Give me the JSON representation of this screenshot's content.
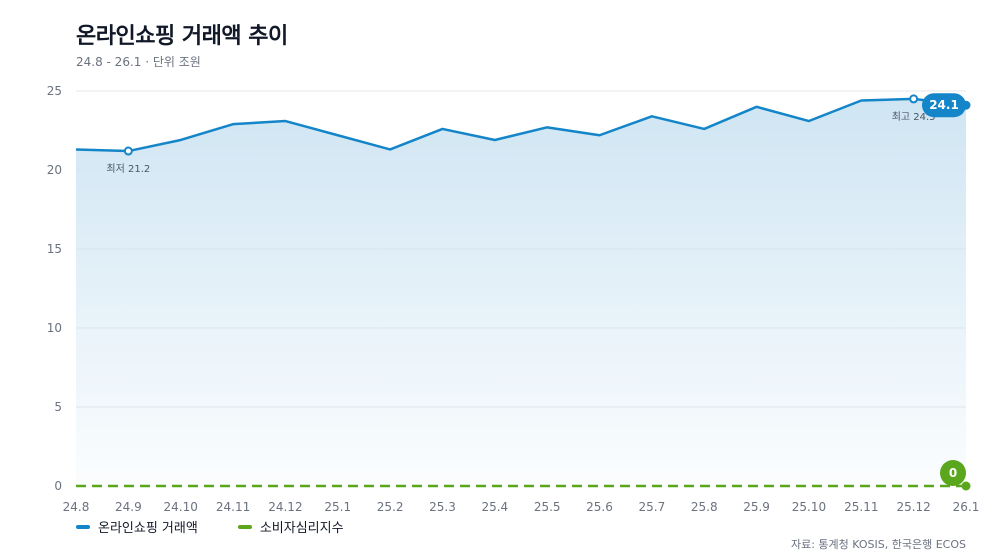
{
  "title": "온라인쇼핑 거래액 추이",
  "subtitle": "24.8 - 26.1 · 단위 조원",
  "source": "자료: 통계청 KOSIS, 한국은행 ECOS",
  "colors": {
    "primary": "#1485c8",
    "secondary": "#5aa61c",
    "area_top": "#cfe5f3",
    "grid": "#e5e7eb"
  },
  "chart_data": {
    "type": "line",
    "categories": [
      "24.8",
      "24.9",
      "24.10",
      "24.11",
      "24.12",
      "25.1",
      "25.2",
      "25.3",
      "25.4",
      "25.5",
      "25.6",
      "25.7",
      "25.8",
      "25.9",
      "25.10",
      "25.11",
      "25.12",
      "26.1"
    ],
    "ylim": [
      0,
      25
    ],
    "yticks": [
      0,
      5,
      10,
      15,
      20,
      25
    ],
    "grid": true,
    "legend_position": "bottom-left",
    "series": [
      {
        "name": "온라인쇼핑 거래액",
        "color": "#1485c8",
        "area": true,
        "values": [
          21.3,
          21.2,
          21.9,
          22.9,
          23.1,
          22.2,
          21.3,
          22.6,
          21.9,
          22.7,
          22.2,
          23.4,
          22.6,
          24.0,
          23.1,
          24.4,
          24.5,
          24.1
        ]
      },
      {
        "name": "소비자심리지수",
        "color": "#5aa61c",
        "dashed": true,
        "values": [
          0,
          0,
          0,
          0,
          0,
          0,
          0,
          0,
          0,
          0,
          0,
          0,
          0,
          0,
          0,
          0,
          0,
          0
        ]
      }
    ],
    "annotations": [
      {
        "series": 0,
        "index": 1,
        "label": "최저 21.2",
        "position": "below"
      },
      {
        "series": 0,
        "index": 16,
        "label": "최고 24.5",
        "position": "below"
      }
    ],
    "end_labels": [
      {
        "series": 0,
        "label": "24.1"
      },
      {
        "series": 1,
        "label": "0"
      }
    ]
  }
}
